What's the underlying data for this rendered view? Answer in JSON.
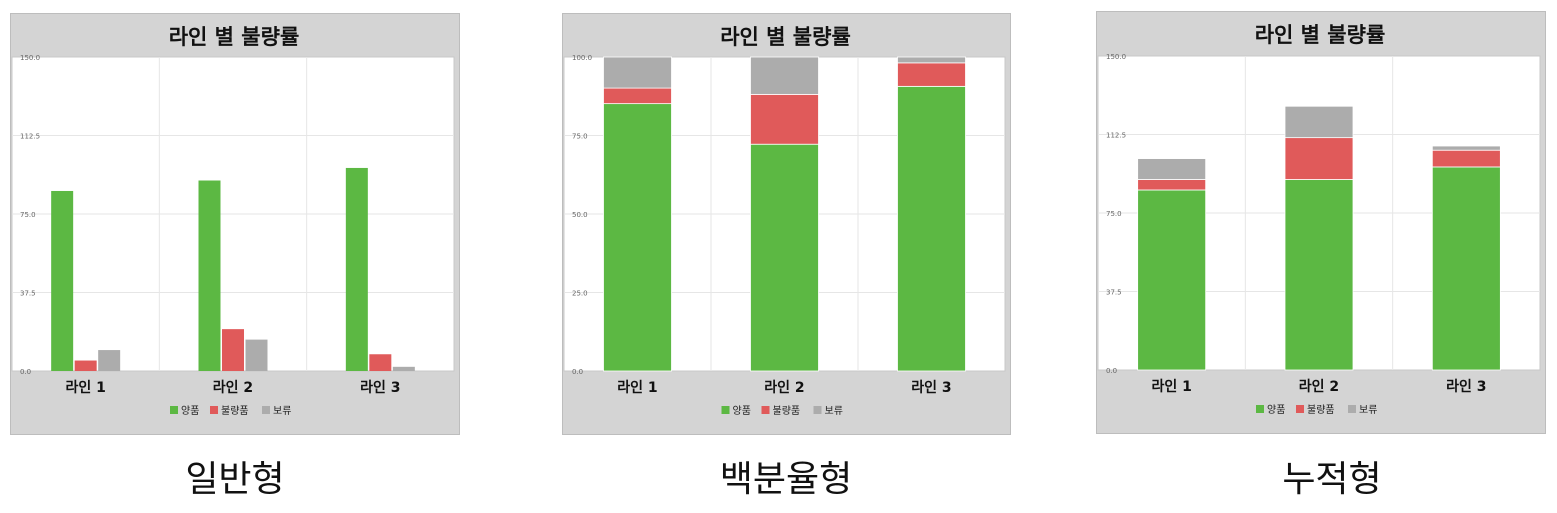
{
  "colors": {
    "good": "#5cb843",
    "defect": "#e05a5a",
    "hold": "#acacac",
    "plot_bg": "#ffffff",
    "panel_bg": "#d4d4d4",
    "grid": "#e6e6e6"
  },
  "captions": [
    "일반형",
    "백분율형",
    "누적형"
  ],
  "chart_data": [
    {
      "type": "bar",
      "mode": "grouped",
      "title": "라인 별 불량률",
      "categories": [
        "라인 1",
        "라인 2",
        "라인 3"
      ],
      "series": [
        {
          "name": "양품",
          "color": "#5cb843",
          "values": [
            86,
            91,
            97
          ]
        },
        {
          "name": "불량품",
          "color": "#e05a5a",
          "values": [
            5,
            20,
            8
          ]
        },
        {
          "name": "보류",
          "color": "#acacac",
          "values": [
            10,
            15,
            2
          ]
        }
      ],
      "ylim": [
        0,
        150
      ],
      "yticks": [
        "0.0",
        "37.5",
        "75.0",
        "112.5",
        "150.0"
      ],
      "grid": true,
      "legend": "bottom"
    },
    {
      "type": "bar",
      "mode": "percent-stacked",
      "title": "라인 별 불량률",
      "categories": [
        "라인 1",
        "라인 2",
        "라인 3"
      ],
      "series": [
        {
          "name": "양품",
          "color": "#5cb843",
          "values": [
            86,
            91,
            97
          ]
        },
        {
          "name": "불량품",
          "color": "#e05a5a",
          "values": [
            5,
            20,
            8
          ]
        },
        {
          "name": "보류",
          "color": "#acacac",
          "values": [
            10,
            15,
            2
          ]
        }
      ],
      "ylim": [
        0,
        100
      ],
      "yticks": [
        "0.0",
        "25.0",
        "50.0",
        "75.0",
        "100.0"
      ],
      "grid": true,
      "legend": "bottom"
    },
    {
      "type": "bar",
      "mode": "stacked",
      "title": "라인 별 불량률",
      "categories": [
        "라인 1",
        "라인 2",
        "라인 3"
      ],
      "series": [
        {
          "name": "양품",
          "color": "#5cb843",
          "values": [
            86,
            91,
            97
          ]
        },
        {
          "name": "불량품",
          "color": "#e05a5a",
          "values": [
            5,
            20,
            8
          ]
        },
        {
          "name": "보류",
          "color": "#acacac",
          "values": [
            10,
            15,
            2
          ]
        }
      ],
      "ylim": [
        0,
        150
      ],
      "yticks": [
        "0.0",
        "37.5",
        "75.0",
        "112.5",
        "150.0"
      ],
      "grid": true,
      "legend": "bottom"
    }
  ]
}
